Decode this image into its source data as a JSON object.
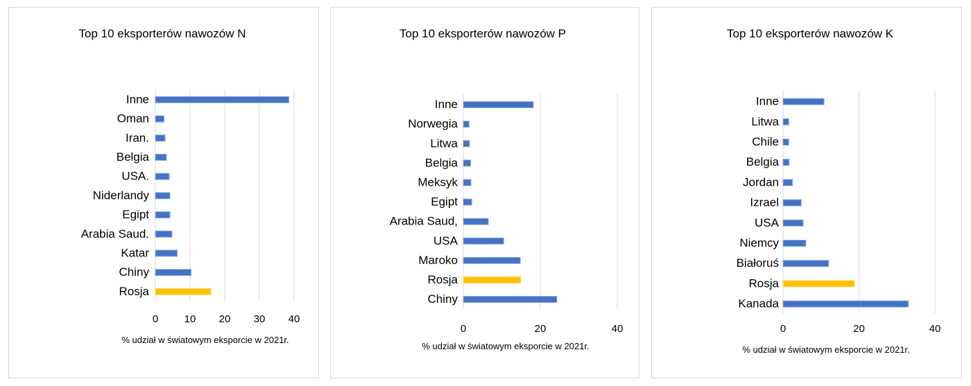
{
  "colors": {
    "series": "#4472c4",
    "highlight": "#ffc000",
    "grid": "#d9d9d9",
    "text": "#000000"
  },
  "chart_data": [
    {
      "type": "bar",
      "orientation": "horizontal",
      "title": "Top 10 eksporterów nawozów N",
      "xlabel": "% udział w światowym eksporcie w 2021r.",
      "categories": [
        "Inne",
        "Oman",
        "Iran.",
        "Belgia",
        "USA.",
        "Niderlandy",
        "Egipt",
        "Arabia Saud.",
        "Katar",
        "Chiny",
        "Rosja"
      ],
      "values": [
        38.5,
        2.5,
        2.8,
        3.2,
        4.0,
        4.2,
        4.2,
        4.8,
        6.3,
        10.3,
        16.0
      ],
      "highlight": "Rosja",
      "xlim": [
        0,
        40
      ],
      "ticks": [
        0,
        10,
        20,
        30,
        40
      ]
    },
    {
      "type": "bar",
      "orientation": "horizontal",
      "title": "Top 10 eksporterów nawozów P",
      "xlabel": "% udział w światowym eksporcie w 2021r.",
      "categories": [
        "Inne",
        "Norwegia",
        "Litwa",
        "Belgia",
        "Meksyk",
        "Egipt",
        "Arabia Saud,",
        "USA",
        "Maroko",
        "Rosja",
        "Chiny"
      ],
      "values": [
        18.2,
        1.5,
        1.6,
        1.9,
        2.0,
        2.2,
        6.5,
        10.5,
        14.8,
        14.9,
        24.3
      ],
      "highlight": "Rosja",
      "xlim": [
        0,
        40
      ],
      "ticks": [
        0,
        20,
        40
      ]
    },
    {
      "type": "bar",
      "orientation": "horizontal",
      "title": "Top 10 eksporterów nawozów K",
      "xlabel": "% udział w światowym eksporcie w 2021r.",
      "categories": [
        "Inne",
        "Litwa",
        "Chile",
        "Belgia",
        "Jordan",
        "Izrael",
        "USA",
        "Niemcy",
        "Białoruś",
        "Rosja",
        "Kanada"
      ],
      "values": [
        10.8,
        1.5,
        1.5,
        1.6,
        2.5,
        4.8,
        5.3,
        6.0,
        12.0,
        18.8,
        33.0
      ],
      "highlight": "Rosja",
      "xlim": [
        0,
        40
      ],
      "ticks": [
        0,
        20,
        40
      ]
    }
  ]
}
